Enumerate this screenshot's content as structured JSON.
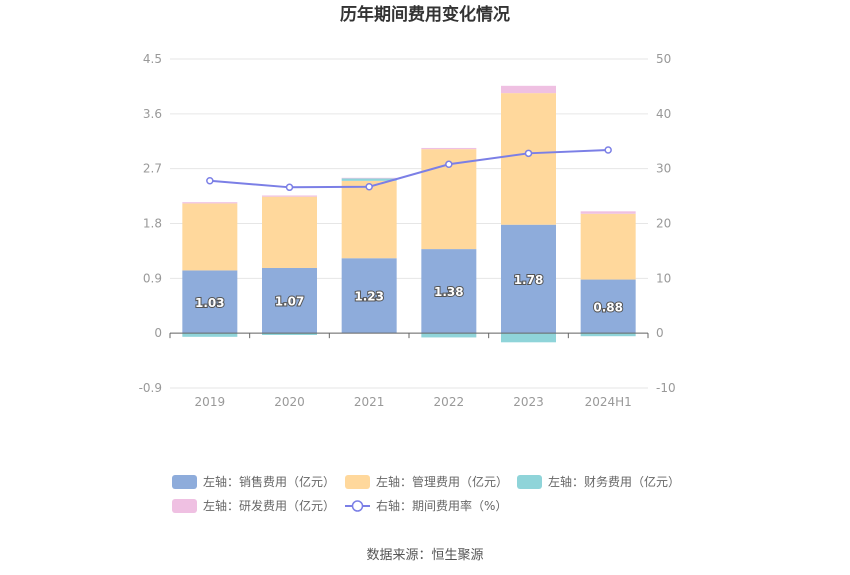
{
  "chart_data": {
    "type": "bar",
    "title": "历年期间费用变化情况",
    "categories": [
      "2019",
      "2020",
      "2021",
      "2022",
      "2023",
      "2024H1"
    ],
    "left_axis": {
      "min": -0.9,
      "max": 4.5,
      "ticks": [
        "4.5",
        "3.6",
        "2.7",
        "1.8",
        "0.9",
        "0",
        "-0.9"
      ]
    },
    "right_axis": {
      "min": -10,
      "max": 50,
      "ticks": [
        "50",
        "40",
        "30",
        "20",
        "10",
        "0",
        "-10"
      ]
    },
    "series": [
      {
        "name": "左轴：销售费用（亿元）",
        "kind": "bar",
        "axis": "left",
        "color": "#8eacdb",
        "values": [
          1.03,
          1.07,
          1.23,
          1.38,
          1.78,
          0.88
        ],
        "labels": [
          "1.03",
          "1.07",
          "1.23",
          "1.38",
          "1.78",
          "0.88"
        ]
      },
      {
        "name": "左轴：管理费用（亿元）",
        "kind": "bar",
        "axis": "left",
        "color": "#ffd89c",
        "values": [
          1.1,
          1.17,
          1.27,
          1.64,
          2.16,
          1.08
        ]
      },
      {
        "name": "左轴：财务费用（亿元）",
        "kind": "bar",
        "axis": "left",
        "color": "#8fd4d9",
        "values": [
          -0.06,
          -0.03,
          0.04,
          -0.07,
          -0.15,
          -0.05
        ]
      },
      {
        "name": "左轴：研发费用（亿元）",
        "kind": "bar",
        "axis": "left",
        "color": "#efc0e2",
        "values": [
          0.02,
          0.02,
          0.01,
          0.02,
          0.12,
          0.04
        ]
      },
      {
        "name": "右轴：期间费用率（%）",
        "kind": "line",
        "axis": "right",
        "color": "#7b7fe6",
        "values": [
          27.8,
          26.6,
          26.7,
          30.8,
          32.8,
          33.4
        ]
      }
    ],
    "grid": true,
    "legend_position": "bottom"
  },
  "source": "数据来源：恒生聚源"
}
